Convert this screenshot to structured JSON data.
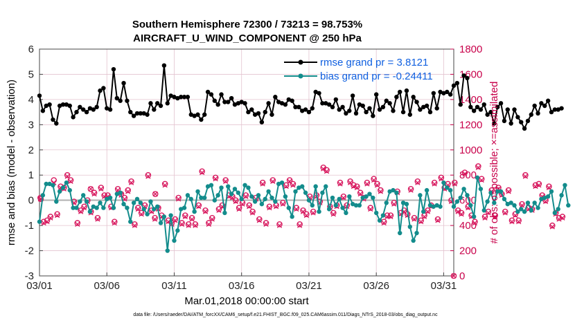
{
  "chart_data": {
    "type": "line",
    "title": "Southern Hemisphere 72300 / 73213 = 98.753%",
    "subtitle": "AIRCRAFT_U_WIND_COMPONENT @ 250 hPa",
    "xlabel": "Mar.01,2018 00:00:00 start",
    "ylabel": "rmse and bias (model - observation)",
    "ylabel_right": "# of obs: o=possible; ×=assimilated",
    "xlim": [
      0,
      30.75
    ],
    "ylim": [
      -3,
      6
    ],
    "ylim_right": [
      0,
      1800
    ],
    "x_tick_values": [
      0,
      5,
      10,
      15,
      20,
      25,
      30
    ],
    "x_tick_labels": [
      "03/01",
      "03/06",
      "03/11",
      "03/16",
      "03/21",
      "03/26",
      "03/31"
    ],
    "y_ticks": [
      "6",
      "5",
      "4",
      "3",
      "2",
      "1",
      "0",
      "-1",
      "-2",
      "-3"
    ],
    "y_ticks_right": [
      "1800",
      "1600",
      "1400",
      "1200",
      "1000",
      "800",
      "600",
      "400",
      "200",
      "0"
    ],
    "grid": true,
    "legend_position": "top-right",
    "legend": [
      {
        "label": "rmse grand pr = 3.8121",
        "color": "#000000"
      },
      {
        "label": "bias grand pr = -0.24411",
        "color": "#138c8c"
      }
    ],
    "footnote": "data file: /Users/raeder/DAI/ATM_forcXX/CAM6_setup/f.e21.FHIST_BGC.f09_025.CAM6assim.011/Diags_NTrS_2018-03/obs_diag_output.nc",
    "dt_days": 0.25,
    "series": [
      {
        "name": "rmse",
        "color": "#000000",
        "values": [
          4.15,
          3.55,
          3.75,
          3.8,
          3.2,
          3.05,
          3.75,
          3.8,
          3.8,
          3.75,
          3.3,
          3.5,
          3.7,
          3.6,
          3.5,
          3.65,
          3.6,
          3.7,
          4.35,
          4.45,
          3.65,
          3.6,
          5.2,
          4.05,
          3.95,
          4.65,
          3.95,
          3.5,
          3.35,
          3.45,
          3.45,
          3.45,
          3.4,
          3.85,
          3.6,
          3.85,
          3.75,
          5.35,
          3.85,
          4.15,
          4.1,
          4.05,
          4.1,
          4.1,
          4.1,
          3.4,
          3.35,
          3.4,
          3.2,
          3.4,
          4.3,
          4.2,
          3.95,
          3.8,
          4.2,
          3.9,
          3.9,
          4.05,
          3.8,
          3.85,
          3.9,
          3.85,
          3.5,
          3.6,
          3.4,
          3.45,
          3.1,
          3.5,
          3.85,
          3.4,
          4.1,
          3.9,
          3.85,
          3.8,
          4.0,
          3.95,
          3.7,
          3.7,
          3.55,
          3.6,
          3.5,
          3.65,
          4.3,
          4.25,
          3.85,
          3.85,
          3.8,
          3.7,
          4.0,
          3.6,
          3.7,
          3.45,
          3.55,
          4.15,
          3.45,
          3.8,
          3.75,
          3.5,
          3.65,
          3.35,
          4.2,
          3.6,
          3.7,
          3.95,
          3.85,
          3.55,
          4.1,
          4.3,
          3.5,
          4.35,
          3.4,
          4.1,
          3.9,
          3.6,
          3.7,
          3.75,
          3.5,
          4.25,
          3.65,
          4.3,
          4.25,
          4.3,
          4.2,
          4.55,
          4.65,
          3.8,
          4.95,
          4.85,
          3.7,
          3.55,
          3.7,
          3.6,
          3.8,
          3.4,
          3.5,
          3.05,
          3.7,
          3.85,
          3.15,
          3.6,
          3.05,
          3.6,
          3.3,
          3.1,
          2.85,
          3.15,
          3.4,
          3.75,
          3.45,
          3.85,
          3.75,
          3.95,
          3.5,
          3.6,
          3.6,
          3.65
        ]
      },
      {
        "name": "bias",
        "color": "#138c8c",
        "values": [
          -0.85,
          0.2,
          0.65,
          0.65,
          0.6,
          -0.05,
          0.35,
          0.5,
          0.7,
          0.4,
          -0.3,
          -0.3,
          -0.05,
          0.2,
          -0.05,
          -0.45,
          -0.25,
          -0.3,
          -0.1,
          -0.3,
          0.05,
          0.1,
          -0.3,
          0.25,
          0.3,
          -0.15,
          -0.3,
          -0.85,
          -0.1,
          0.05,
          -0.1,
          -0.35,
          -0.55,
          -0.05,
          -0.35,
          -0.25,
          -0.9,
          -0.65,
          -2.0,
          -0.6,
          -1.6,
          -1.2,
          -0.35,
          -0.3,
          0.2,
          0.05,
          -0.45,
          0.35,
          0.1,
          0.1,
          0.55,
          0.6,
          0.0,
          0.2,
          0.5,
          -0.5,
          0.55,
          0.25,
          0.45,
          0.3,
          0.05,
          0.6,
          0.5,
          0.15,
          -0.05,
          0.2,
          -0.15,
          0.05,
          0.35,
          0.1,
          -0.05,
          0.65,
          0.7,
          0.15,
          -0.3,
          -0.65,
          0.35,
          0.5,
          0.55,
          0.3,
          0.0,
          -0.2,
          0.55,
          -0.45,
          0.3,
          0.55,
          -0.35,
          0.1,
          -0.2,
          0.05,
          -0.3,
          -0.5,
          0.15,
          -0.15,
          -0.2,
          -0.2,
          0.1,
          0.15,
          0.25,
          0.1,
          -0.5,
          -0.8,
          -0.6,
          -0.1,
          0.35,
          0.4,
          0.3,
          -1.3,
          -0.1,
          -0.15,
          -1.05,
          -1.6,
          -1.3,
          0.2,
          -0.45,
          0.4,
          -0.2,
          -0.25,
          -0.2,
          -0.25,
          0.7,
          0.5,
          0.4,
          -0.25,
          -0.05,
          0.1,
          0.45,
          0.2,
          -0.2,
          -0.65,
          0.9,
          0.45,
          -0.4,
          -0.05,
          0.3,
          -0.1,
          0.35,
          0.35,
          0.05,
          -0.15,
          -0.1,
          -0.2,
          -0.45,
          -0.35,
          -0.45,
          -0.1,
          -0.4,
          -0.1,
          -0.3,
          0.05,
          0.1,
          0.15,
          0.35,
          -0.5,
          -0.35,
          0.2,
          0.6,
          -0.2
        ]
      },
      {
        "name": "obs_possible",
        "color": "#d81b60",
        "values": [
          620,
          430,
          440,
          470,
          760,
          490,
          710,
          700,
          800,
          760,
          590,
          420,
          520,
          550,
          600,
          510,
          660,
          460,
          700,
          640,
          640,
          550,
          430,
          690,
          650,
          620,
          680,
          750,
          410,
          540,
          500,
          560,
          800,
          520,
          460,
          540,
          480,
          730,
          440,
          420,
          450,
          620,
          420,
          480,
          410,
          460,
          410,
          560,
          830,
          520,
          420,
          460,
          780,
          530,
          560,
          760,
          640,
          630,
          600,
          540,
          580,
          640,
          560,
          510,
          620,
          450,
          740,
          420,
          550,
          760,
          560,
          410,
          580,
          720,
          760,
          730,
          540,
          410,
          520,
          490,
          630,
          510,
          640,
          590,
          860,
          840,
          550,
          500,
          560,
          740,
          630,
          560,
          750,
          720,
          710,
          660,
          620,
          740,
          540,
          770,
          730,
          680,
          430,
          480,
          480,
          580,
          670,
          500,
          520,
          490,
          690,
          460,
          750,
          440,
          480,
          520,
          560,
          740,
          450,
          780,
          700,
          730,
          600,
          740,
          520,
          500,
          820,
          550,
          480,
          430,
          870,
          770,
          470,
          510,
          680,
          480,
          700,
          650,
          510,
          680,
          440,
          490,
          440,
          570,
          800,
          540,
          530,
          720,
          730,
          640,
          600,
          710,
          400,
          500,
          460,
          470
        ]
      },
      {
        "name": "obs_assimilated",
        "color": "#d81b60",
        "values": [
          610,
          420,
          430,
          460,
          740,
          480,
          700,
          690,
          790,
          750,
          580,
          410,
          510,
          540,
          590,
          500,
          650,
          450,
          690,
          630,
          630,
          540,
          420,
          680,
          640,
          610,
          670,
          740,
          400,
          530,
          490,
          550,
          790,
          510,
          450,
          530,
          470,
          720,
          430,
          410,
          440,
          610,
          410,
          470,
          400,
          450,
          400,
          550,
          820,
          510,
          410,
          450,
          770,
          520,
          550,
          750,
          630,
          620,
          590,
          530,
          570,
          630,
          550,
          500,
          610,
          440,
          730,
          410,
          540,
          750,
          550,
          400,
          570,
          710,
          750,
          720,
          530,
          400,
          510,
          480,
          620,
          500,
          630,
          580,
          850,
          830,
          540,
          490,
          550,
          730,
          620,
          550,
          740,
          710,
          700,
          650,
          610,
          730,
          530,
          760,
          720,
          670,
          420,
          470,
          470,
          570,
          660,
          490,
          510,
          480,
          680,
          450,
          740,
          430,
          470,
          510,
          550,
          730,
          440,
          770,
          690,
          720,
          590,
          730,
          510,
          490,
          810,
          540,
          470,
          420,
          860,
          760,
          460,
          500,
          670,
          470,
          690,
          640,
          500,
          670,
          430,
          480,
          430,
          560,
          790,
          530,
          520,
          710,
          720,
          630,
          590,
          700,
          390,
          490,
          450,
          460
        ]
      },
      {
        "name": "obs_special",
        "color": "#d81b60",
        "values": [
          {
            "x": 0.1,
            "possible": 610,
            "assimilated": 610
          },
          {
            "x": 3.8,
            "possible": 690,
            "assimilated": 690
          },
          {
            "x": 8.6,
            "possible": 650,
            "assimilated": 650
          },
          {
            "x": 30.75,
            "possible": 0,
            "assimilated": 0
          }
        ]
      }
    ]
  }
}
